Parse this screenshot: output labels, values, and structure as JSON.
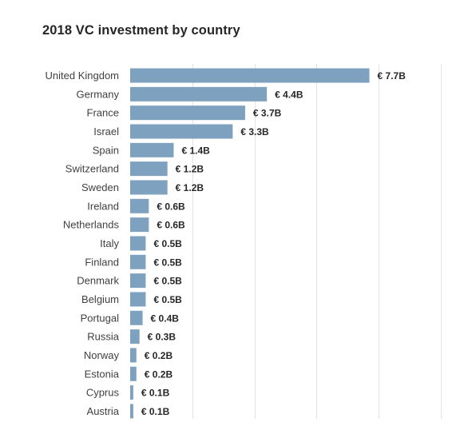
{
  "chart_data": {
    "type": "bar",
    "orientation": "horizontal",
    "title": "2018 VC investment by country",
    "xlabel": "",
    "ylabel": "",
    "categories": [
      "United Kingdom",
      "Germany",
      "France",
      "Israel",
      "Spain",
      "Switzerland",
      "Sweden",
      "Ireland",
      "Netherlands",
      "Italy",
      "Finland",
      "Denmark",
      "Belgium",
      "Portugal",
      "Russia",
      "Norway",
      "Estonia",
      "Cyprus",
      "Austria"
    ],
    "values": [
      7.7,
      4.4,
      3.7,
      3.3,
      1.4,
      1.2,
      1.2,
      0.6,
      0.6,
      0.5,
      0.5,
      0.5,
      0.5,
      0.4,
      0.3,
      0.2,
      0.2,
      0.1,
      0.1
    ],
    "value_labels": [
      "€ 7.7B",
      "€ 4.4B",
      "€ 3.7B",
      "€ 3.3B",
      "€ 1.4B",
      "€ 1.2B",
      "€ 1.2B",
      "€ 0.6B",
      "€ 0.6B",
      "€ 0.5B",
      "€ 0.5B",
      "€ 0.5B",
      "€ 0.5B",
      "€ 0.4B",
      "€ 0.3B",
      "€ 0.2B",
      "€ 0.2B",
      "€ 0.1B",
      "€ 0.1B"
    ],
    "unit": "€ B",
    "xlim": [
      0,
      10
    ],
    "grid": true,
    "legend": "none",
    "bar_color": "#7ea1bf",
    "gridline_color": "#e3e3e3"
  }
}
